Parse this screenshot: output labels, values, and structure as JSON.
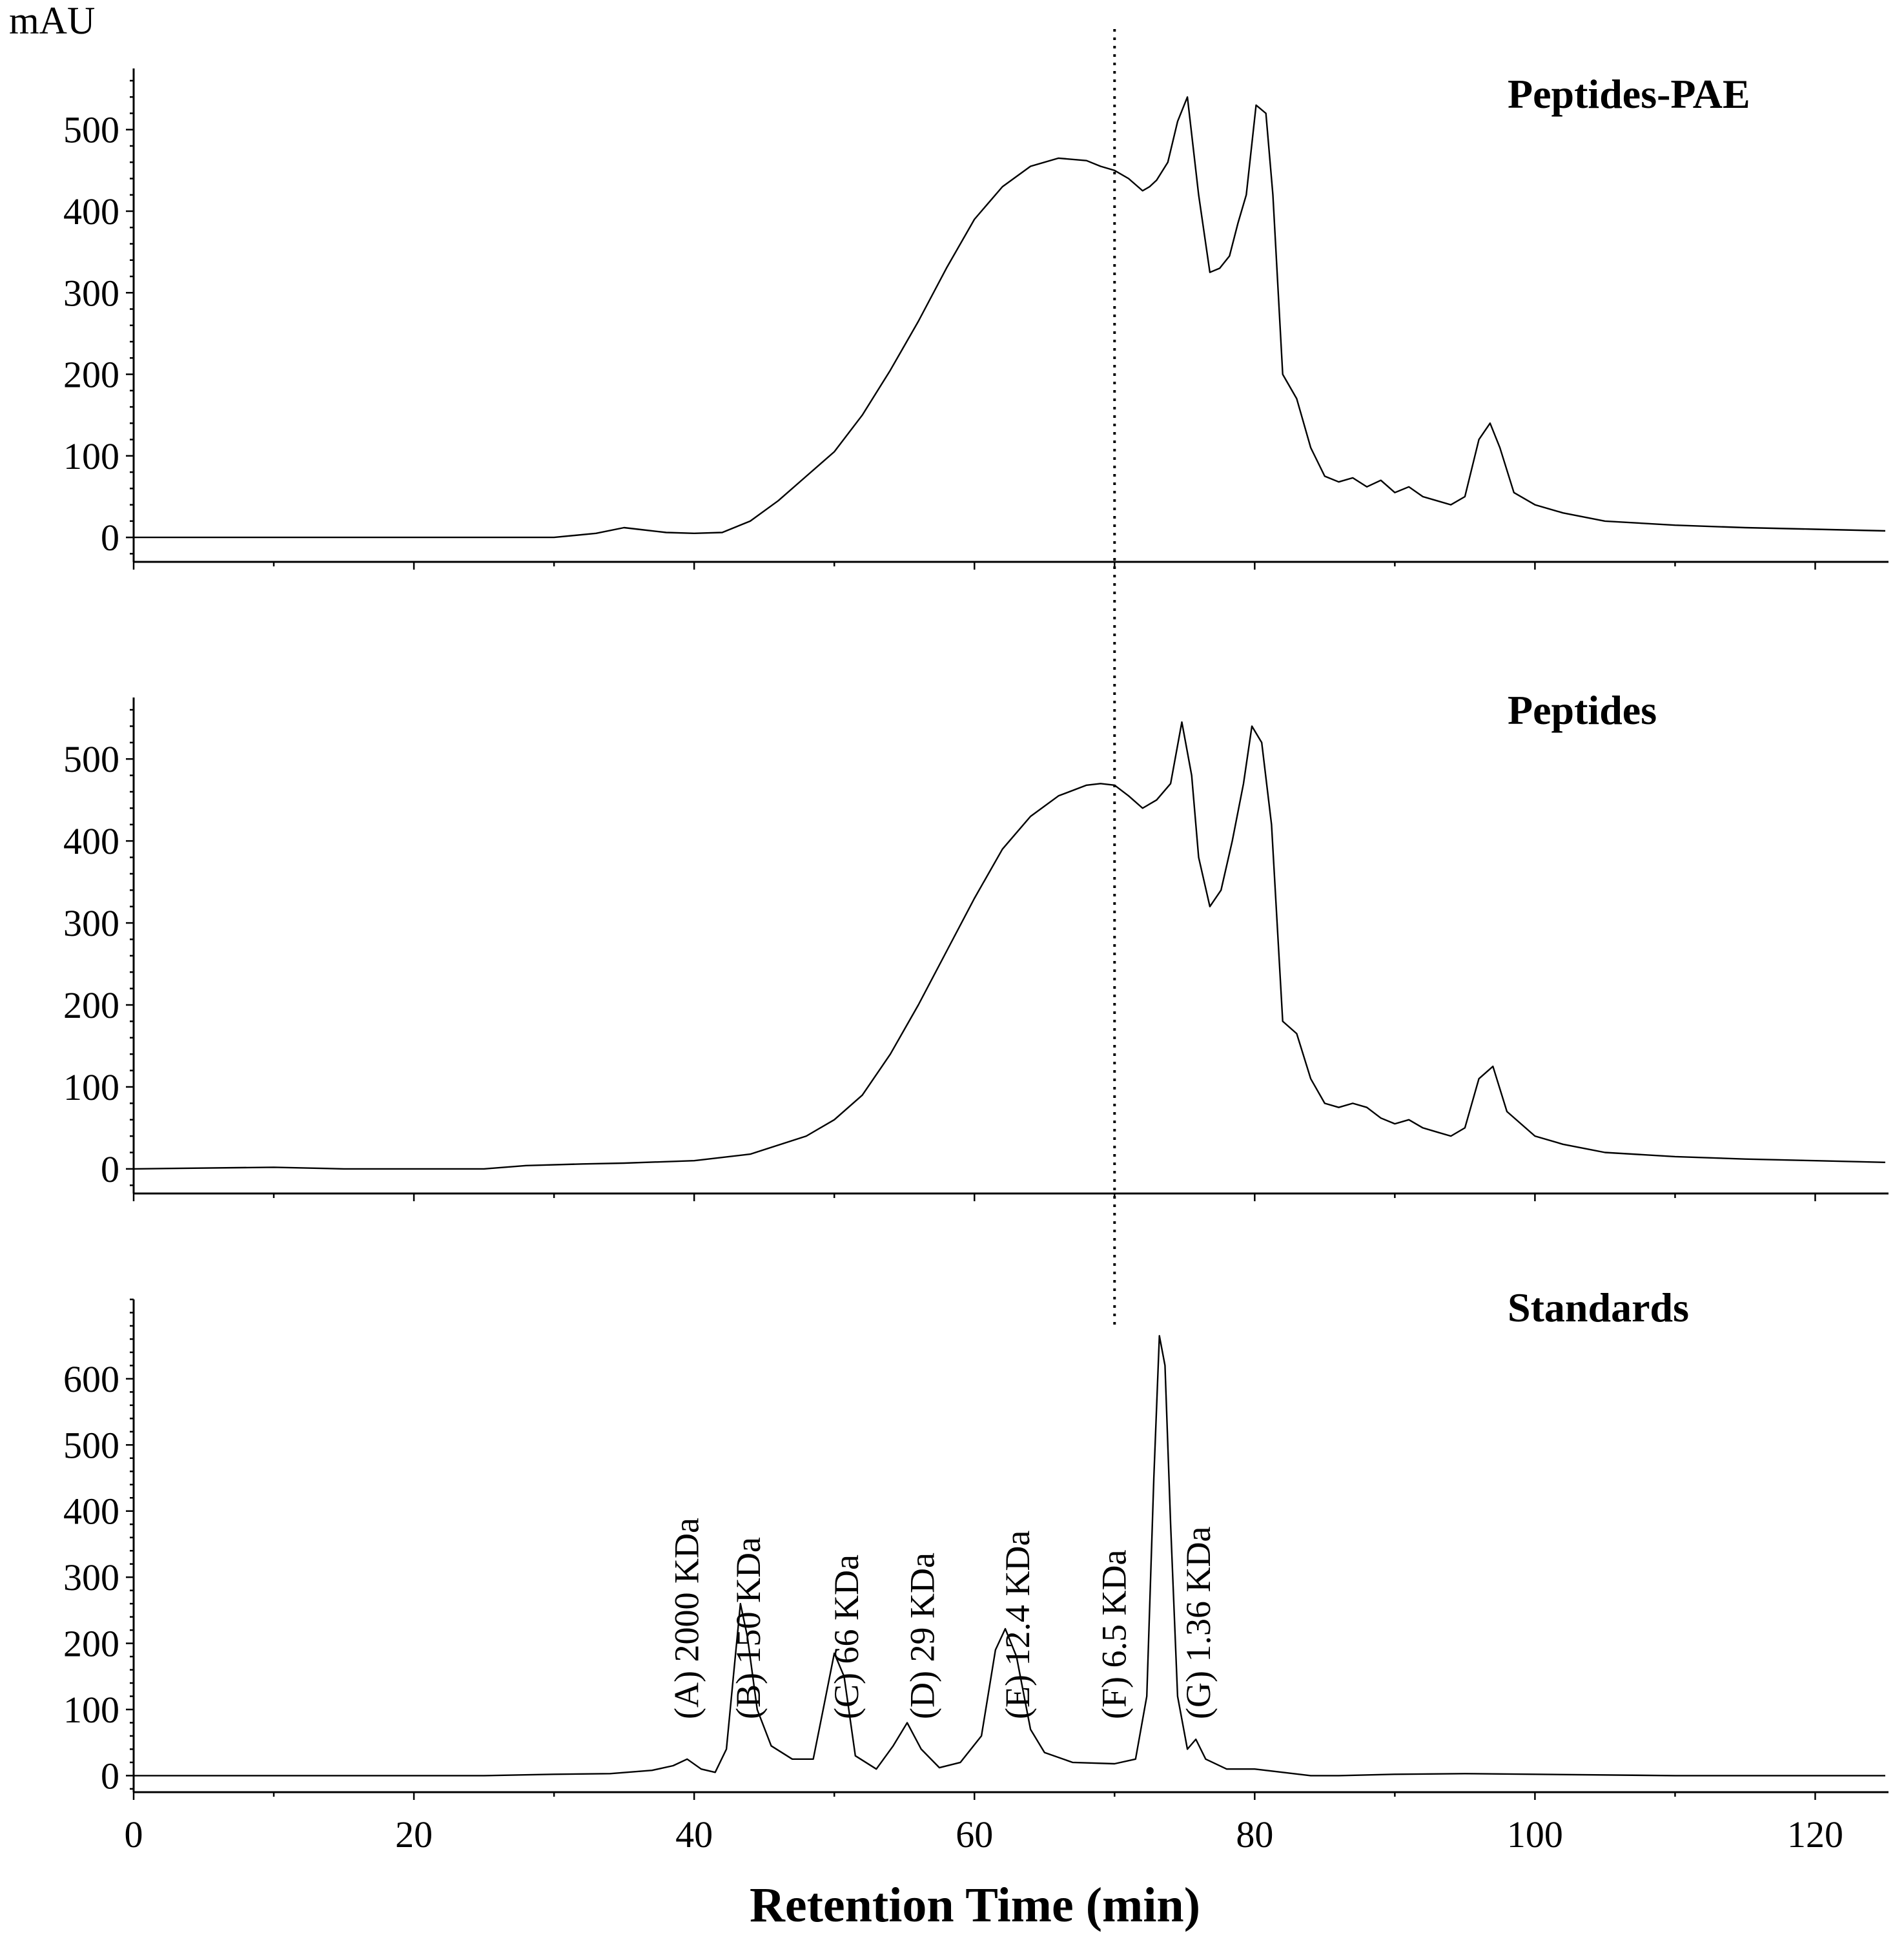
{
  "chart_data": {
    "type": "line",
    "y_unit": "mAU",
    "xlabel": "Retention Time (min)",
    "xlim": [
      0,
      125
    ],
    "x_ticks": [
      0,
      20,
      40,
      60,
      80,
      100,
      120
    ],
    "reference_line_x": 70,
    "panels": [
      {
        "title": "Peptides-PAE",
        "ylim": [
          -30,
          575
        ],
        "y_ticks": [
          0,
          100,
          200,
          300,
          400,
          500
        ],
        "series": [
          {
            "name": "Peptides-PAE",
            "x": [
              0,
              10,
              15,
              30,
              33,
              35,
              36,
              38,
              40,
              42,
              44,
              46,
              48,
              50,
              52,
              54,
              56,
              58,
              60,
              62,
              64,
              66,
              68,
              69,
              70,
              71,
              72,
              72.5,
              73,
              73.8,
              74.5,
              75.2,
              76,
              76.8,
              77.5,
              78.2,
              78.8,
              79.4,
              80.1,
              80.8,
              81.3,
              82,
              83,
              84,
              85,
              86,
              87,
              88,
              89,
              90,
              91,
              92,
              93,
              94,
              95,
              96,
              96.8,
              97.5,
              98.5,
              100,
              102,
              105,
              110,
              115,
              120,
              125
            ],
            "y": [
              0,
              0,
              0,
              0,
              5,
              12,
              10,
              6,
              5,
              6,
              20,
              45,
              75,
              105,
              150,
              205,
              265,
              330,
              390,
              430,
              455,
              465,
              462,
              455,
              450,
              440,
              425,
              430,
              438,
              460,
              510,
              540,
              420,
              325,
              330,
              345,
              385,
              420,
              530,
              520,
              420,
              200,
              170,
              110,
              75,
              68,
              73,
              62,
              70,
              55,
              62,
              50,
              45,
              40,
              50,
              120,
              140,
              110,
              55,
              40,
              30,
              20,
              15,
              12,
              10,
              8
            ]
          }
        ]
      },
      {
        "title": "Peptides",
        "ylim": [
          -30,
          575
        ],
        "y_ticks": [
          0,
          100,
          200,
          300,
          400,
          500
        ],
        "series": [
          {
            "name": "Peptides",
            "x": [
              0,
              10,
              15,
              25,
              28,
              32,
              35,
              40,
              44,
              48,
              50,
              52,
              54,
              56,
              58,
              60,
              62,
              64,
              66,
              68,
              69,
              70,
              71,
              72,
              73,
              74,
              74.8,
              75.5,
              76,
              76.8,
              77.6,
              78.4,
              79.2,
              79.8,
              80.5,
              81.2,
              82,
              83,
              84,
              85,
              86,
              87,
              88,
              89,
              90,
              91,
              92,
              93,
              94,
              95,
              96,
              97,
              98,
              100,
              102,
              105,
              110,
              115,
              120,
              125
            ],
            "y": [
              0,
              2,
              0,
              0,
              4,
              6,
              7,
              10,
              18,
              40,
              60,
              90,
              140,
              200,
              265,
              330,
              390,
              430,
              455,
              468,
              470,
              468,
              455,
              440,
              450,
              470,
              545,
              480,
              380,
              320,
              340,
              400,
              470,
              540,
              520,
              420,
              180,
              165,
              110,
              80,
              75,
              80,
              75,
              62,
              55,
              60,
              50,
              45,
              40,
              50,
              110,
              125,
              70,
              40,
              30,
              20,
              15,
              12,
              10,
              8
            ]
          }
        ]
      },
      {
        "title": "Standards",
        "ylim": [
          -25,
          720
        ],
        "y_ticks": [
          0,
          100,
          200,
          300,
          400,
          500,
          600
        ],
        "series": [
          {
            "name": "Standards",
            "x": [
              0,
              25,
              30,
              34,
              37,
              38.5,
              39.5,
              40.5,
              41.5,
              42.3,
              42.8,
              43.3,
              43.8,
              44.5,
              45.5,
              47,
              48.5,
              49.3,
              50,
              50.7,
              51.5,
              53,
              54.2,
              55.2,
              56.2,
              57.5,
              59,
              60.5,
              61.5,
              62.2,
              63,
              64,
              65,
              67,
              70,
              71.5,
              72.3,
              72.8,
              73.2,
              73.6,
              74,
              74.5,
              75.2,
              75.8,
              76.5,
              78,
              80,
              82,
              84,
              86,
              90,
              95,
              100,
              110,
              125
            ],
            "y": [
              0,
              0,
              2,
              3,
              8,
              15,
              25,
              10,
              5,
              40,
              150,
              260,
              210,
              100,
              45,
              25,
              25,
              110,
              185,
              150,
              30,
              10,
              45,
              80,
              40,
              12,
              20,
              60,
              190,
              222,
              180,
              70,
              35,
              20,
              18,
              25,
              120,
              450,
              665,
              620,
              380,
              120,
              40,
              55,
              25,
              10,
              10,
              5,
              0,
              0,
              2,
              3,
              2,
              0,
              0
            ]
          }
        ],
        "annotations": [
          {
            "text": "(A) 2000 KDa",
            "x": 40.3
          },
          {
            "text": "(B) 150 KDa",
            "x": 44.7
          },
          {
            "text": "(C) 66 KDa",
            "x": 51.7
          },
          {
            "text": "(D) 29 KDa",
            "x": 57.1
          },
          {
            "text": "(E) 12.4 KDa",
            "x": 63.9
          },
          {
            "text": "(F) 6.5 KDa",
            "x": 70.8
          },
          {
            "text": "(G) 1.36 KDa",
            "x": 76.8
          }
        ]
      }
    ]
  }
}
